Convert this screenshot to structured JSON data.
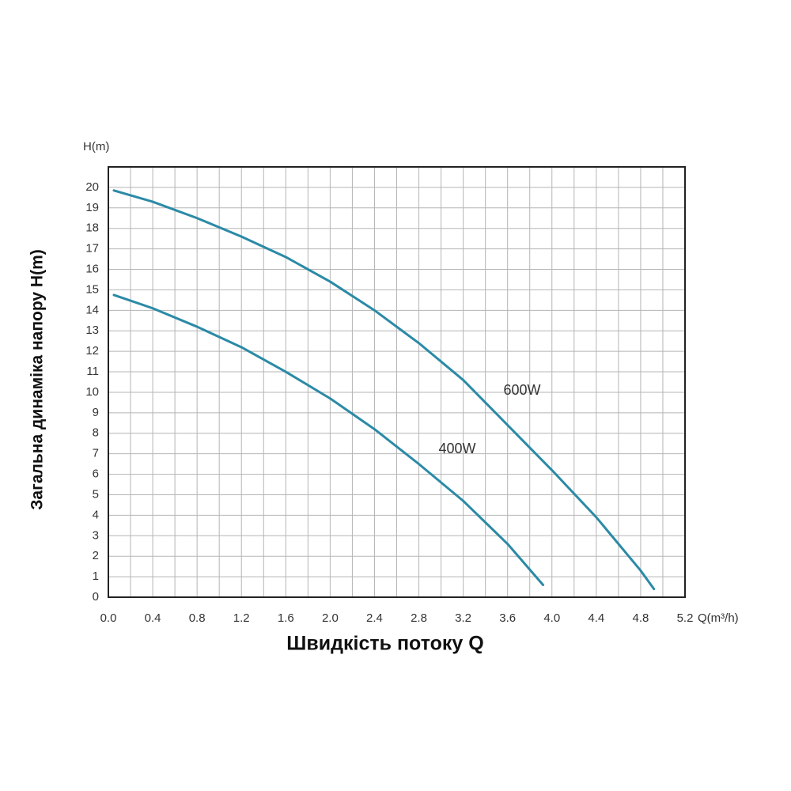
{
  "chart_data": {
    "type": "line",
    "x_axis_label": "Q(m³/h)",
    "y_axis_label": "H(m)",
    "y_title": "Загальна динаміка напору H(m)",
    "x_title": "Швидкість потоку Q",
    "xlim": [
      0,
      5.2
    ],
    "ylim": [
      0,
      21
    ],
    "xticks": [
      {
        "value": 0,
        "label": "0.0"
      },
      0.4,
      0.8,
      1.2,
      1.6,
      {
        "value": 2,
        "label": "2.0"
      },
      2.4,
      2.8,
      3.2,
      3.6,
      {
        "value": 4,
        "label": "4.0"
      },
      4.4,
      4.8,
      5.2
    ],
    "yticks": [
      0,
      1,
      2,
      3,
      4,
      5,
      6,
      7,
      8,
      9,
      10,
      11,
      12,
      13,
      14,
      15,
      16,
      17,
      18,
      19,
      20
    ],
    "grid": true,
    "series": [
      {
        "name": "600W",
        "color": "#2b8aa6",
        "x": [
          0.05,
          0.4,
          0.8,
          1.2,
          1.6,
          2.0,
          2.4,
          2.8,
          3.2,
          3.6,
          4.0,
          4.4,
          4.8,
          4.92
        ],
        "values": [
          19.85,
          19.3,
          18.5,
          17.6,
          16.6,
          15.4,
          14.0,
          12.4,
          10.6,
          8.4,
          6.2,
          3.9,
          1.3,
          0.4
        ]
      },
      {
        "name": "400W",
        "color": "#2b8aa6",
        "x": [
          0.05,
          0.4,
          0.8,
          1.2,
          1.6,
          2.0,
          2.4,
          2.8,
          3.2,
          3.6,
          3.92
        ],
        "values": [
          14.75,
          14.1,
          13.2,
          12.2,
          11.0,
          9.7,
          8.2,
          6.5,
          4.7,
          2.6,
          0.6
        ]
      }
    ]
  }
}
